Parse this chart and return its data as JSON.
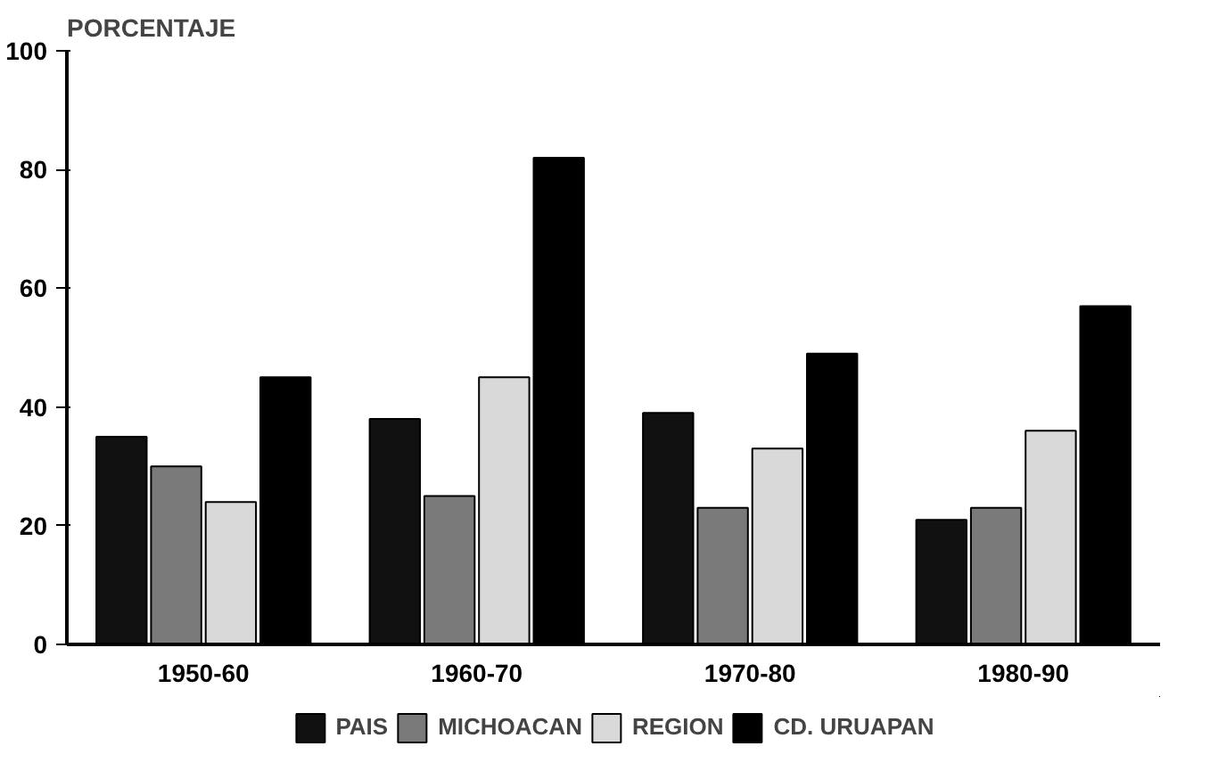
{
  "chart_data": {
    "type": "bar",
    "ylabel": "PORCENTAJE",
    "categories": [
      "1950-60",
      "1960-70",
      "1970-80",
      "1980-90"
    ],
    "series": [
      {
        "name": "PAIS",
        "color": "#111111",
        "values": [
          35,
          38,
          39,
          21
        ]
      },
      {
        "name": "MICHOACAN",
        "color": "#7a7a7a",
        "values": [
          30,
          25,
          23,
          23
        ]
      },
      {
        "name": "REGION",
        "color": "#d9d9d9",
        "values": [
          24,
          45,
          33,
          36
        ]
      },
      {
        "name": "CD. URUAPAN",
        "color": "#000000",
        "values": [
          45,
          82,
          49,
          57
        ]
      }
    ],
    "ylim": [
      0,
      100
    ],
    "yticks": [
      0,
      20,
      40,
      60,
      80,
      100
    ],
    "grid": false,
    "legend": "bottom"
  }
}
